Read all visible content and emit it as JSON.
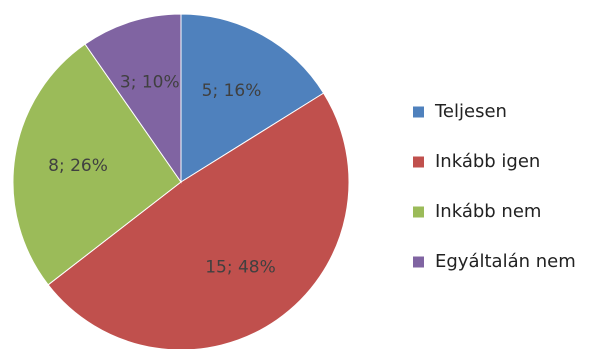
{
  "chart_data": {
    "type": "pie",
    "start_angle_deg": 0,
    "direction": "clockwise",
    "legend_position": "right",
    "slices": [
      {
        "label": "Teljesen",
        "count": 5,
        "percent": 16,
        "data_label": "5; 16%",
        "color": "#4f81bd"
      },
      {
        "label": "Inkább igen",
        "count": 15,
        "percent": 48,
        "data_label": "15; 48%",
        "color": "#c0504d"
      },
      {
        "label": "Inkább nem",
        "count": 8,
        "percent": 26,
        "data_label": "8; 26%",
        "color": "#9bbb59"
      },
      {
        "label": "Egyáltalán nem",
        "count": 3,
        "percent": 10,
        "data_label": "3; 10%",
        "color": "#8064a2"
      }
    ]
  }
}
